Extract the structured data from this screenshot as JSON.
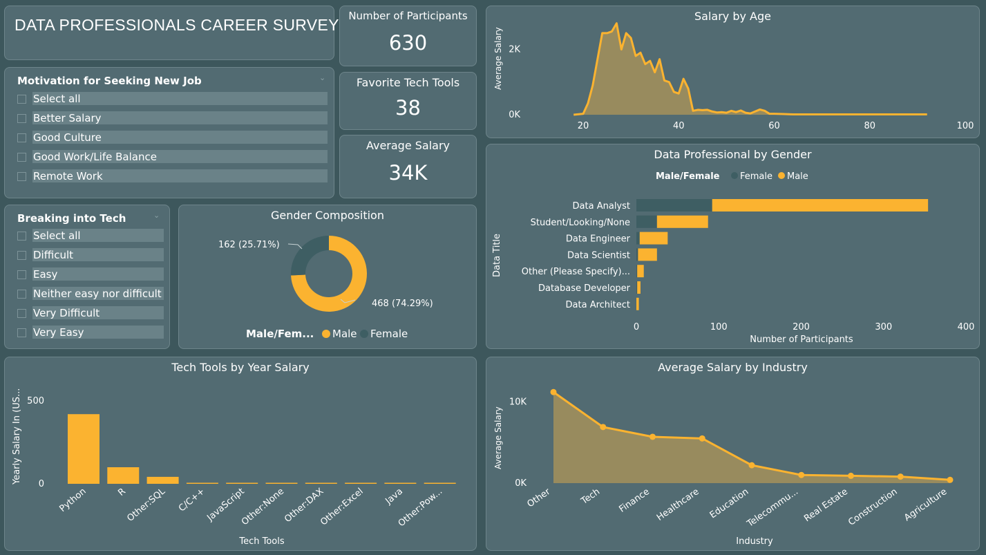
{
  "dashboard": {
    "title": "DATA PROFESSIONALS CAREER SURVEY"
  },
  "kpis": {
    "participants": {
      "label": "Number of Participants",
      "value": "630"
    },
    "tech_tools": {
      "label": "Favorite Tech Tools",
      "value": "38"
    },
    "avg_salary": {
      "label": "Average Salary",
      "value": "34K"
    }
  },
  "motivation_slicer": {
    "title": "Motivation for Seeking New Job",
    "items": [
      "Select all",
      "Better Salary",
      "Good Culture",
      "Good Work/Life Balance",
      "Remote Work"
    ]
  },
  "breaking_slicer": {
    "title": "Breaking into Tech",
    "items": [
      "Select all",
      "Difficult",
      "Easy",
      "Neither easy nor difficult",
      "Very Difficult",
      "Very Easy"
    ]
  },
  "colors": {
    "male": "#fbb330",
    "female": "#3e5e63",
    "card": "#526b72",
    "background": "#3d575c"
  },
  "charts": {
    "salary_by_age": {
      "title": "Salary by Age",
      "type": "area",
      "ylabel": "Average Salary",
      "x_ticks": [
        "20",
        "40",
        "60",
        "80",
        "100"
      ],
      "y_ticks": [
        "0K",
        "2K"
      ],
      "xlim": [
        17,
        100
      ],
      "ylim": [
        0,
        2900
      ],
      "x": [
        18,
        20,
        21,
        22,
        23,
        24,
        25,
        26,
        27,
        28,
        29,
        30,
        31,
        32,
        33,
        34,
        35,
        36,
        37,
        38,
        39,
        40,
        41,
        42,
        43,
        44,
        45,
        46,
        47,
        48,
        49,
        50,
        51,
        52,
        53,
        54,
        55,
        56,
        57,
        58,
        59,
        60,
        62,
        64,
        66,
        70,
        75,
        80,
        85,
        92
      ],
      "y": [
        0,
        30,
        350,
        900,
        1700,
        2500,
        2500,
        2550,
        2800,
        2000,
        2500,
        2350,
        1800,
        1900,
        1550,
        1650,
        1300,
        1700,
        1050,
        1000,
        700,
        650,
        1100,
        800,
        120,
        150,
        140,
        150,
        100,
        70,
        80,
        60,
        120,
        80,
        130,
        60,
        40,
        100,
        160,
        120,
        30,
        30,
        20,
        10,
        10,
        10,
        10,
        10,
        10,
        10
      ]
    },
    "gender_composition": {
      "title": "Gender Composition",
      "type": "pie",
      "legend_title": "Male/Fem...",
      "slices": [
        {
          "name": "Male",
          "value": 468,
          "label": "468 (74.29%)"
        },
        {
          "name": "Female",
          "value": 162,
          "label": "162 (25.71%)"
        }
      ]
    },
    "professional_by_gender": {
      "title": "Data Professional by Gender",
      "type": "bar",
      "legend_title": "Male/Female",
      "ylabel": "Data Title",
      "xlabel": "Number of Participants",
      "x_ticks": [
        "0",
        "100",
        "200",
        "300",
        "400"
      ],
      "xlim": [
        0,
        400
      ],
      "categories": [
        "Data Analyst",
        "Student/Looking/None",
        "Data Engineer",
        "Data Scientist",
        "Other (Please Specify)...",
        "Database Developer",
        "Data Architect"
      ],
      "series": [
        {
          "name": "Female",
          "values": [
            92,
            25,
            4,
            2,
            1,
            1,
            0
          ]
        },
        {
          "name": "Male",
          "values": [
            262,
            62,
            34,
            23,
            8,
            4,
            3
          ]
        }
      ]
    },
    "tech_tools_salary": {
      "title": "Tech Tools by Year Salary",
      "type": "bar",
      "ylabel": "Yearly Salary In (US...",
      "xlabel": "Tech Tools",
      "y_ticks": [
        "0",
        "500"
      ],
      "ylim": [
        0,
        600
      ],
      "categories": [
        "Python",
        "R",
        "Other:SQL",
        "C/C++",
        "JavaScript",
        "Other:None",
        "Other:DAX",
        "Other:Excel",
        "Java",
        "Other:Pow..."
      ],
      "values": [
        420,
        100,
        42,
        5,
        4,
        3,
        3,
        3,
        2,
        2
      ]
    },
    "salary_by_industry": {
      "title": "Average Salary by Industry",
      "type": "area",
      "ylabel": "Average Salary",
      "xlabel": "Industry",
      "y_ticks": [
        "0K",
        "10K"
      ],
      "ylim": [
        0,
        12500
      ],
      "categories": [
        "Other",
        "Tech",
        "Finance",
        "Healthcare",
        "Education",
        "Telecommu...",
        "Real Estate",
        "Construction",
        "Agriculture"
      ],
      "values": [
        11200,
        6900,
        5700,
        5500,
        2200,
        1000,
        900,
        800,
        400
      ]
    }
  }
}
